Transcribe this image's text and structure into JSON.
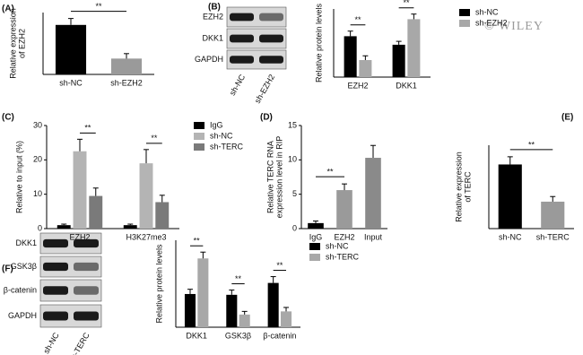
{
  "panel_labels": [
    "(A)",
    "(B)",
    "(C)",
    "(D)",
    "(E)",
    "(F)"
  ],
  "watermark": "© WILEY",
  "blots": [
    {
      "rows": [
        "EZH2",
        "DKK1",
        "GAPDH"
      ],
      "lanes": [
        "sh-NC",
        "sh-EZH2"
      ]
    },
    {
      "rows": [
        "DKK1",
        "GSK3β",
        "β-catenin",
        "GAPDH"
      ],
      "lanes": [
        "sh-NC",
        "sh-TERC"
      ]
    }
  ],
  "chart_data": [
    {
      "type": "bar",
      "y_label": [
        "Relative expression",
        "of EZH2"
      ],
      "categories": [
        "sh-NC",
        "sh-EZH2"
      ],
      "values": [
        1.0,
        0.32
      ],
      "errors": [
        0.13,
        0.1
      ],
      "colors": [
        "#000000",
        "#9a9a9a"
      ],
      "ylim": [
        0,
        1.25
      ],
      "brackets": [
        {
          "label": "**",
          "between": [
            0,
            1
          ]
        }
      ]
    },
    {
      "type": "grouped-bar",
      "y_label": [
        "Relative protein levels"
      ],
      "categories": [
        "EZH2",
        "DKK1"
      ],
      "series": [
        {
          "name": "sh-NC",
          "color": "#000000",
          "values": [
            0.48,
            0.38
          ],
          "errors": [
            0.06,
            0.04
          ]
        },
        {
          "name": "sh-EZH2",
          "color": "#a8a8a8",
          "values": [
            0.2,
            0.68
          ],
          "errors": [
            0.05,
            0.06
          ]
        }
      ],
      "ylim": [
        0,
        0.8
      ],
      "legend": "right",
      "brackets": [
        {
          "label": "**",
          "category": 0,
          "between": [
            0,
            1
          ]
        },
        {
          "label": "**",
          "category": 1,
          "between": [
            0,
            1
          ]
        }
      ]
    },
    {
      "type": "grouped-bar",
      "y_label": [
        "Relative to input (%)"
      ],
      "categories": [
        "EZH2",
        "H3K27me3"
      ],
      "series": [
        {
          "name": "IgG",
          "color": "#000000",
          "values": [
            1,
            1
          ],
          "errors": [
            0.3,
            0.3
          ]
        },
        {
          "name": "sh-NC",
          "color": "#b4b4b4",
          "values": [
            22.5,
            19
          ],
          "errors": [
            3.5,
            4
          ]
        },
        {
          "name": "sh-TERC",
          "color": "#7a7a7a",
          "values": [
            9.5,
            7.7
          ],
          "errors": [
            2.3,
            2
          ]
        }
      ],
      "ylim": [
        0,
        30
      ],
      "yticks": [
        0,
        10,
        20,
        30
      ],
      "legend": "right",
      "brackets": [
        {
          "label": "**",
          "category": 0,
          "between": [
            1,
            2
          ]
        },
        {
          "label": "**",
          "category": 1,
          "between": [
            1,
            2
          ]
        }
      ]
    },
    {
      "type": "bar",
      "y_label": [
        "Relative TERC RNA",
        "expression level in RIP"
      ],
      "categories": [
        "IgG",
        "EZH2",
        "Input"
      ],
      "values": [
        0.8,
        5.6,
        10.3
      ],
      "errors": [
        0.3,
        0.9,
        1.8
      ],
      "colors": [
        "#000000",
        "#9a9a9a",
        "#8a8a8a"
      ],
      "ylim": [
        0,
        15
      ],
      "yticks": [
        0,
        5,
        10,
        15
      ],
      "brackets": [
        {
          "label": "**",
          "between": [
            0,
            1
          ]
        }
      ]
    },
    {
      "type": "bar",
      "y_label": [
        "Relative expression",
        "of TERC"
      ],
      "categories": [
        "sh-NC",
        "sh-TERC"
      ],
      "values": [
        1.0,
        0.42
      ],
      "errors": [
        0.12,
        0.08
      ],
      "colors": [
        "#000000",
        "#9a9a9a"
      ],
      "ylim": [
        0,
        1.3
      ],
      "brackets": [
        {
          "label": "**",
          "between": [
            0,
            1
          ]
        }
      ]
    },
    {
      "type": "grouped-bar",
      "y_label": [
        "Relative protein levels"
      ],
      "categories": [
        "DKK1",
        "GSK3β",
        "β-catenin"
      ],
      "series": [
        {
          "name": "sh-NC",
          "color": "#000000",
          "values": [
            0.42,
            0.41,
            0.56
          ],
          "errors": [
            0.06,
            0.06,
            0.08
          ]
        },
        {
          "name": "sh-TERC",
          "color": "#a8a8a8",
          "values": [
            0.87,
            0.16,
            0.2
          ],
          "errors": [
            0.08,
            0.04,
            0.05
          ]
        }
      ],
      "ylim": [
        0,
        1.1
      ],
      "legend": "right",
      "brackets": [
        {
          "label": "**",
          "category": 0,
          "between": [
            0,
            1
          ]
        },
        {
          "label": "**",
          "category": 1,
          "between": [
            0,
            1
          ]
        },
        {
          "label": "**",
          "category": 2,
          "between": [
            0,
            1
          ]
        }
      ]
    }
  ]
}
